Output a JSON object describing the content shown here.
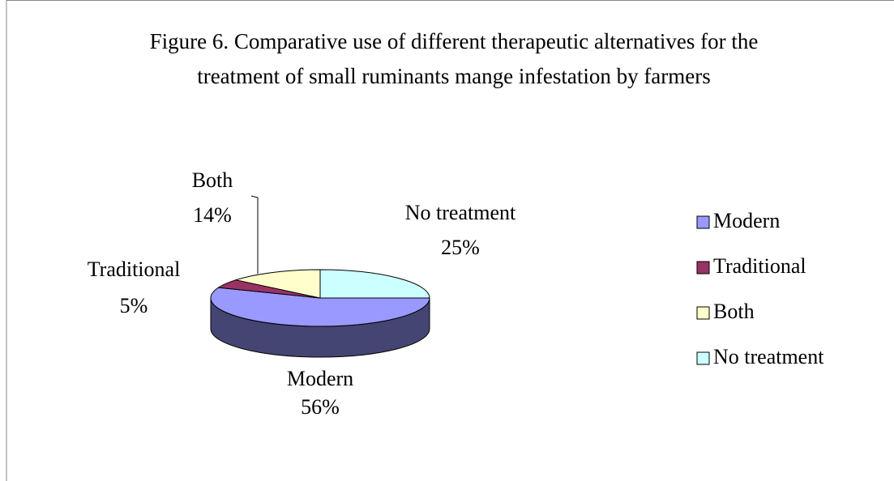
{
  "chart_data": {
    "type": "pie3d",
    "title": "Figure 6.  Comparative use of different therapeutic alternatives for the treatment of small ruminants mange infestation by farmers",
    "categories": [
      "Modern",
      "Traditional",
      "Both",
      "No treatment"
    ],
    "values": [
      56,
      5,
      14,
      25
    ],
    "value_labels": [
      "56%",
      "5%",
      "14%",
      "25%"
    ],
    "colors": [
      "#9999ff",
      "#993366",
      "#ffffcc",
      "#ccffff"
    ],
    "legend": "right"
  }
}
